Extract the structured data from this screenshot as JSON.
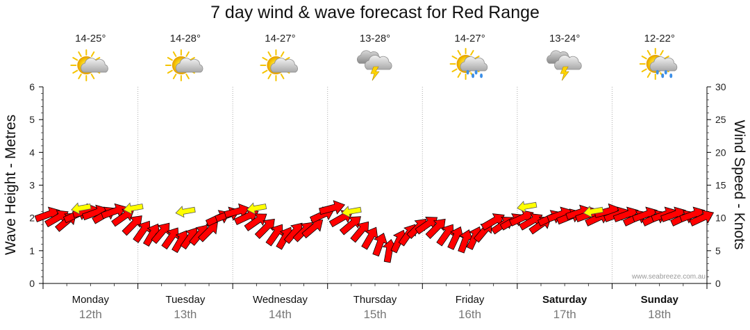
{
  "title": "7 day wind & wave forecast for Red Range",
  "credit": "www.seabreeze.com.au",
  "left_axis_label": "Wave Height - Metres",
  "right_axis_label": "Wind Speed - Knots",
  "days": [
    {
      "name": "Monday",
      "date": "12th",
      "temp": "14-25°",
      "icon": "partly-cloudy-icon",
      "bold": false
    },
    {
      "name": "Tuesday",
      "date": "13th",
      "temp": "14-28°",
      "icon": "partly-cloudy-icon",
      "bold": false
    },
    {
      "name": "Wednesday",
      "date": "14th",
      "temp": "14-27°",
      "icon": "partly-cloudy-icon",
      "bold": false
    },
    {
      "name": "Thursday",
      "date": "15th",
      "temp": "13-28°",
      "icon": "storm-icon",
      "bold": false
    },
    {
      "name": "Friday",
      "date": "16th",
      "temp": "14-27°",
      "icon": "sun-showers-icon",
      "bold": false
    },
    {
      "name": "Saturday",
      "date": "17th",
      "temp": "13-24°",
      "icon": "storm-icon",
      "bold": true
    },
    {
      "name": "Sunday",
      "date": "18th",
      "temp": "12-22°",
      "icon": "sun-showers-icon",
      "bold": true
    }
  ],
  "colors": {
    "wind_arrow": "#ff0000",
    "wave_arrow": "#ffff00",
    "grid": "#aaaaaa",
    "sun": "#f5c400",
    "cloud": "#bfbfbf"
  },
  "chart_data": {
    "type": "scatter",
    "title": "7 day wind & wave forecast for Red Range",
    "ylabel": "Wave Height - Metres",
    "y2label": "Wind Speed - Knots",
    "ylim": [
      0,
      6
    ],
    "y2lim": [
      0,
      30
    ],
    "yticks": [
      0,
      1,
      2,
      3,
      4,
      5,
      6
    ],
    "y2ticks": [
      0,
      5,
      10,
      15,
      20,
      25,
      30
    ],
    "categories": [
      "Monday 12th",
      "Tuesday 13th",
      "Wednesday 14th",
      "Thursday 15th",
      "Friday 16th",
      "Saturday 17th",
      "Sunday 18th"
    ],
    "grid": true,
    "series": [
      {
        "kind": "wind",
        "x": [
          0.0,
          0.1,
          0.2,
          0.3,
          0.4,
          0.5,
          0.6,
          0.7,
          0.8,
          0.9,
          1.0,
          1.1,
          1.2,
          1.3,
          1.4,
          1.5,
          1.6,
          1.7,
          1.8,
          1.9,
          2.0,
          2.1,
          2.2,
          2.3,
          2.4,
          2.5,
          2.6,
          2.7,
          2.8,
          2.9,
          3.0,
          3.1,
          3.2,
          3.3,
          3.4,
          3.5,
          3.6,
          3.7,
          3.8,
          3.9,
          4.0,
          4.1,
          4.2,
          4.3,
          4.4,
          4.5,
          4.6,
          4.7,
          4.8,
          4.9,
          5.0,
          5.1,
          5.2,
          5.3,
          5.4,
          5.5,
          5.6,
          5.7,
          5.8,
          5.9,
          6.0,
          6.1,
          6.2,
          6.3,
          6.4,
          6.5,
          6.6,
          6.7,
          6.8,
          6.9
        ],
        "knots": [
          10.5,
          10,
          9.5,
          10.5,
          11,
          10.8,
          10.5,
          11,
          10.2,
          9,
          8,
          7.5,
          7.8,
          7,
          6.5,
          7,
          7.5,
          8,
          10,
          10.5,
          11,
          10.2,
          9.5,
          8.5,
          7.5,
          7,
          7.8,
          8,
          8.5,
          10.5,
          11.5,
          10,
          9,
          8,
          7,
          6,
          5,
          6.5,
          7.5,
          8.5,
          9,
          8.5,
          7.5,
          7,
          6.5,
          7,
          8,
          9.5,
          9,
          9.5,
          10,
          9.5,
          9,
          10,
          10.5,
          10.2,
          10.8,
          10.5,
          10,
          11,
          10.5,
          10.5,
          10,
          10.5,
          10,
          10.5,
          10.5,
          10,
          10.5,
          10
        ],
        "direction_deg": [
          250,
          240,
          230,
          245,
          255,
          250,
          240,
          250,
          235,
          225,
          215,
          210,
          220,
          215,
          210,
          215,
          220,
          225,
          245,
          250,
          255,
          245,
          235,
          225,
          215,
          210,
          220,
          225,
          230,
          245,
          255,
          240,
          230,
          220,
          210,
          200,
          190,
          205,
          215,
          225,
          235,
          225,
          215,
          205,
          200,
          205,
          220,
          240,
          235,
          240,
          245,
          240,
          235,
          245,
          250,
          248,
          252,
          250,
          245,
          255,
          250,
          250,
          245,
          250,
          245,
          250,
          250,
          245,
          250,
          245
        ]
      },
      {
        "kind": "wave",
        "x": [
          0.35,
          0.9,
          1.45,
          2.2,
          3.2,
          5.05,
          5.75
        ],
        "metres": [
          2.3,
          2.3,
          2.2,
          2.3,
          2.2,
          2.35,
          2.2
        ],
        "direction_deg": [
          80,
          80,
          80,
          80,
          80,
          80,
          80
        ]
      }
    ]
  }
}
